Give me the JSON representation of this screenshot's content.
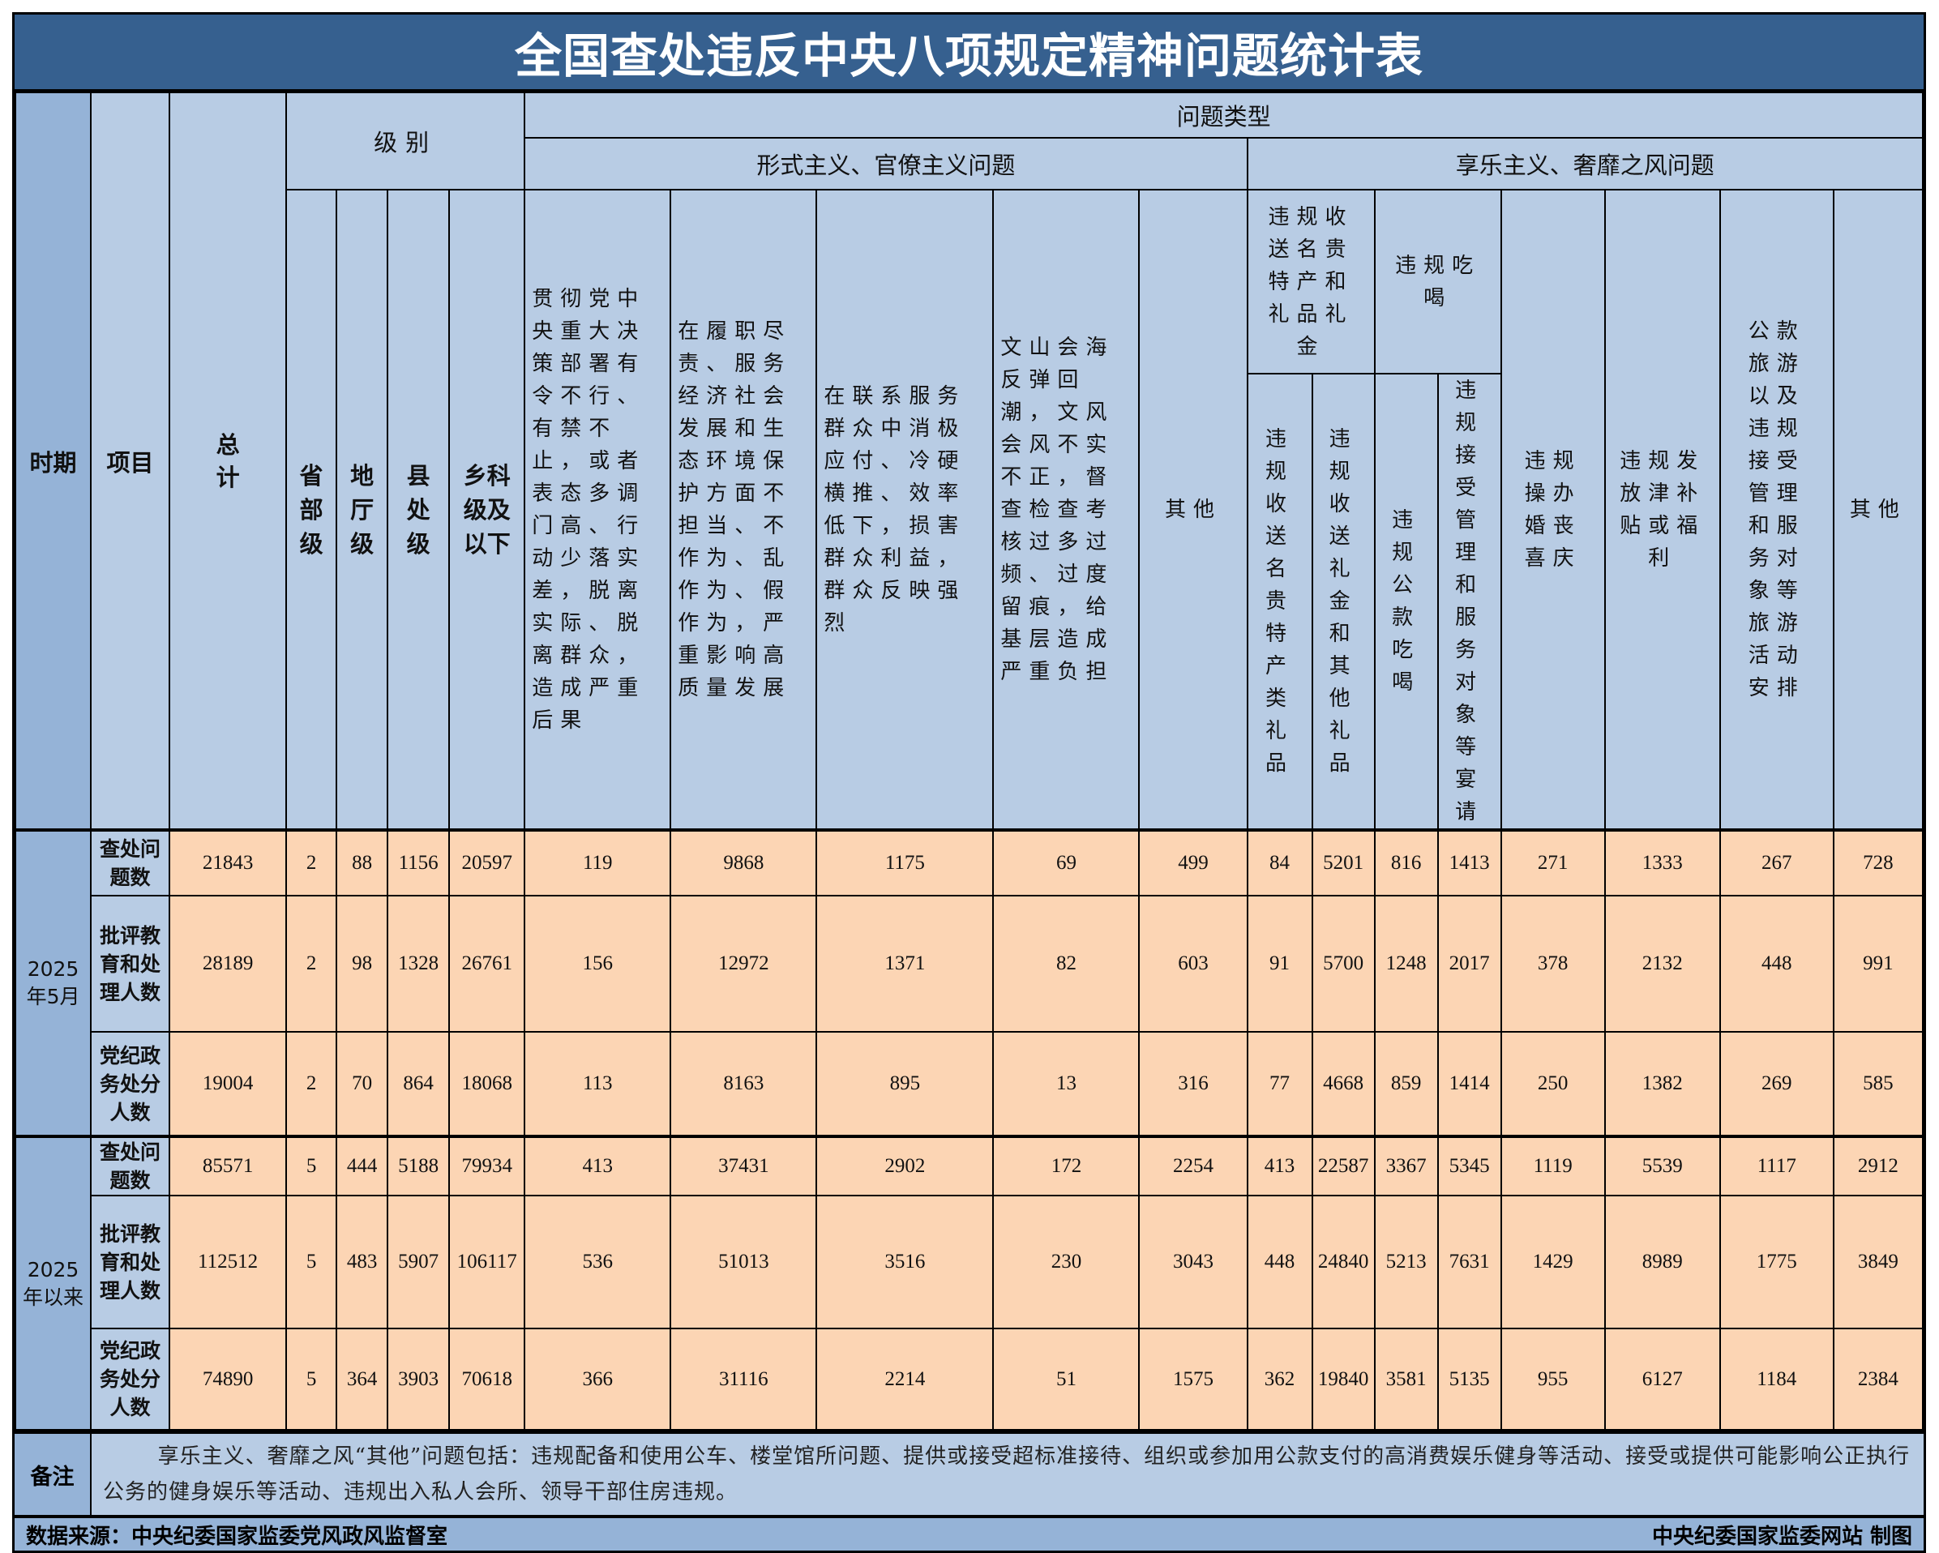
{
  "title": "全国查处违反中央八项规定精神问题统计表",
  "header": {
    "period": "时期",
    "item": "项目",
    "total": "总计",
    "level": "级别",
    "levels": [
      "省部级",
      "地厅级",
      "县处级",
      "乡科级及以下"
    ],
    "problem_type": "问题类型",
    "formalism": "形式主义、官僚主义问题",
    "hedonism": "享乐主义、奢靡之风问题",
    "formalism_cols": [
      "贯彻党中央重大决策部署有令不行、有禁不止，或者表态多调门高、行动少落实差，脱离实际、脱离群众，造成严重后果",
      "在履职尽责、服务经济社会发展和生态环境保护方面不担当、不作为、乱作为、假作为，严重影响高质量发展",
      "在联系服务群众中消极应付、冷硬横推、效率低下，损害群众利益，群众反映强烈",
      "文山会海反弹回潮，文风会风不实不正，督查检查考核过多过频、过度留痕，给基层造成严重负担",
      "其他"
    ],
    "gifts": "违规收送名贵特产和礼品礼金",
    "gifts_sub": [
      "违规收送名贵特产类礼品",
      "违规收送礼金和其他礼品"
    ],
    "dining": "违规吃喝",
    "dining_sub": [
      "违规公款吃喝",
      "违规接受管理和服务对象等宴请"
    ],
    "hedonism_cols": [
      "违规操办婚丧喜庆",
      "违规发放津补贴或福利",
      "公款旅游以及违规接受管理和服务对象等旅游活动安排",
      "其他"
    ]
  },
  "periods": [
    {
      "label": "2025年5月",
      "rows": [
        {
          "item": "查处问题数",
          "values": [
            21843,
            2,
            88,
            1156,
            20597,
            119,
            9868,
            1175,
            69,
            499,
            84,
            5201,
            816,
            1413,
            271,
            1333,
            267,
            728
          ]
        },
        {
          "item": "批评教育和处理人数",
          "values": [
            28189,
            2,
            98,
            1328,
            26761,
            156,
            12972,
            1371,
            82,
            603,
            91,
            5700,
            1248,
            2017,
            378,
            2132,
            448,
            991
          ]
        },
        {
          "item": "党纪政务处分人数",
          "values": [
            19004,
            2,
            70,
            864,
            18068,
            113,
            8163,
            895,
            13,
            316,
            77,
            4668,
            859,
            1414,
            250,
            1382,
            269,
            585
          ]
        }
      ]
    },
    {
      "label": "2025年以来",
      "rows": [
        {
          "item": "查处问题数",
          "values": [
            85571,
            5,
            444,
            5188,
            79934,
            413,
            37431,
            2902,
            172,
            2254,
            413,
            22587,
            3367,
            5345,
            1119,
            5539,
            1117,
            2912
          ]
        },
        {
          "item": "批评教育和处理人数",
          "values": [
            112512,
            5,
            483,
            5907,
            106117,
            536,
            51013,
            3516,
            230,
            3043,
            448,
            24840,
            5213,
            7631,
            1429,
            8989,
            1775,
            3849
          ]
        },
        {
          "item": "党纪政务处分人数",
          "values": [
            74890,
            5,
            364,
            3903,
            70618,
            366,
            31116,
            2214,
            51,
            1575,
            362,
            19840,
            3581,
            5135,
            955,
            6127,
            1184,
            2384
          ]
        }
      ]
    }
  ],
  "notes": {
    "label": "备注",
    "text": "享乐主义、奢靡之风“其他”问题包括：违规配备和使用公车、楼堂馆所问题、提供或接受超标准接待、组织或参加用公款支付的高消费娱乐健身等活动、接受或提供可能影响公正执行公务的健身娱乐等活动、违规出入私人会所、领导干部住房违规。"
  },
  "footer": {
    "source": "数据来源：中央纪委国家监委党风政风监督室",
    "credit": "中央纪委国家监委网站 制图"
  },
  "colors": {
    "title_bg": "#36608f",
    "header_bg": "#b8cce4",
    "period_bg": "#95b3d7",
    "data_bg": "#fcd5b4"
  }
}
